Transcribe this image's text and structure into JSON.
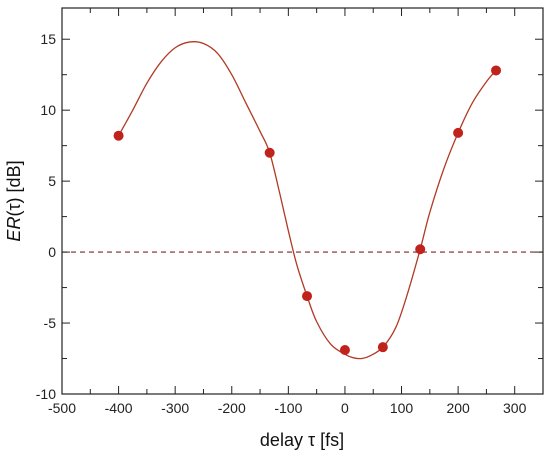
{
  "chart_data": {
    "type": "scatter",
    "title": "",
    "xlabel": "delay τ [fs]",
    "ylabel_prefix": "ER",
    "ylabel_suffix": "(τ) [dB]",
    "xlim": [
      -500,
      350
    ],
    "ylim": [
      -10,
      17.2
    ],
    "x_ticks": [
      -500,
      -400,
      -300,
      -200,
      -100,
      0,
      100,
      200,
      300
    ],
    "y_ticks": [
      -10,
      -5,
      0,
      5,
      10,
      15
    ],
    "grid": false,
    "reference_line_y": 0,
    "series": [
      {
        "kind": "points",
        "x": [
          -400,
          -133,
          -67,
          0,
          67,
          133,
          200,
          267
        ],
        "y": [
          8.2,
          7.0,
          -3.1,
          -6.9,
          -6.7,
          0.2,
          8.4,
          12.8
        ]
      },
      {
        "kind": "fit-curve",
        "x": [
          -400,
          -375,
          -350,
          -325,
          -300,
          -275,
          -250,
          -225,
          -200,
          -175,
          -150,
          -133,
          -115,
          -100,
          -85,
          -67,
          -50,
          -25,
          0,
          15,
          30,
          45,
          67,
          90,
          110,
          133,
          150,
          175,
          200,
          225,
          250,
          267
        ],
        "y": [
          8.2,
          10.0,
          11.9,
          13.4,
          14.4,
          14.8,
          14.7,
          14.0,
          12.5,
          10.5,
          8.5,
          7.0,
          4.1,
          1.5,
          -0.9,
          -3.1,
          -4.9,
          -6.5,
          -7.2,
          -7.45,
          -7.5,
          -7.3,
          -6.7,
          -5.3,
          -3.0,
          0.2,
          2.8,
          5.9,
          8.4,
          10.5,
          12.0,
          12.8
        ]
      }
    ],
    "colors": {
      "points": "#c0231b",
      "curve": "#b13a24",
      "reference_line": "#7a2a20",
      "axis": "#222222"
    }
  }
}
